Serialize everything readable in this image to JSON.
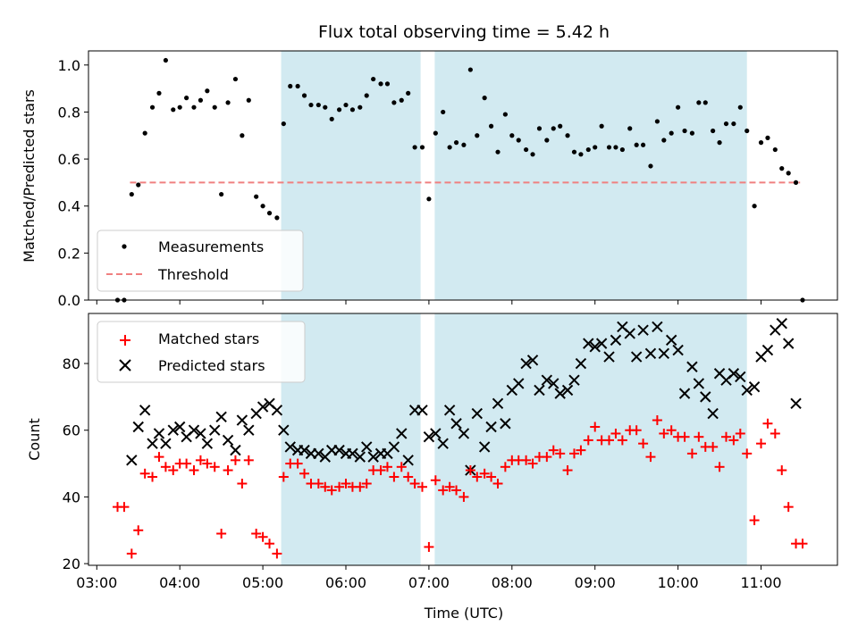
{
  "chart_data": [
    {
      "type": "scatter",
      "title": "Flux total observing time = 5.42 h",
      "ylabel": "Matched/Predicted stars",
      "ylim": [
        0,
        1.06
      ],
      "yticks": [
        "0.0",
        "0.2",
        "0.4",
        "0.6",
        "0.8",
        "1.0"
      ],
      "yticks_values": [
        0,
        0.2,
        0.4,
        0.6,
        0.8,
        1.0
      ],
      "legend": {
        "placement": "lower-left",
        "entries": [
          "Measurements",
          "Threshold"
        ]
      },
      "colors": {
        "points": "#000000",
        "threshold": "#f08080",
        "span": "#add8e6"
      },
      "threshold": {
        "name": "Threshold",
        "value": 0.5,
        "x_start": 3.4,
        "x_end": 11.47
      },
      "series": [
        {
          "name": "Measurements",
          "x": [
            3.25,
            3.33,
            3.42,
            3.5,
            3.58,
            3.67,
            3.75,
            3.83,
            3.92,
            4.0,
            4.08,
            4.17,
            4.25,
            4.33,
            4.42,
            4.5,
            4.58,
            4.67,
            4.75,
            4.83,
            4.92,
            5.0,
            5.08,
            5.17,
            5.25,
            5.33,
            5.42,
            5.5,
            5.58,
            5.67,
            5.75,
            5.83,
            5.92,
            6.0,
            6.08,
            6.17,
            6.25,
            6.33,
            6.42,
            6.5,
            6.58,
            6.67,
            6.75,
            6.83,
            6.92,
            7.0,
            7.08,
            7.17,
            7.25,
            7.33,
            7.42,
            7.5,
            7.58,
            7.67,
            7.75,
            7.83,
            7.92,
            8.0,
            8.08,
            8.17,
            8.25,
            8.33,
            8.42,
            8.5,
            8.58,
            8.67,
            8.75,
            8.83,
            8.92,
            9.0,
            9.08,
            9.17,
            9.25,
            9.33,
            9.42,
            9.5,
            9.58,
            9.67,
            9.75,
            9.83,
            9.92,
            10.0,
            10.08,
            10.17,
            10.25,
            10.33,
            10.42,
            10.5,
            10.58,
            10.67,
            10.75,
            10.83,
            10.92,
            11.0,
            11.08,
            11.17,
            11.25,
            11.33,
            11.42,
            11.5
          ],
          "y": [
            0.0,
            0.0,
            0.45,
            0.49,
            0.71,
            0.82,
            0.88,
            1.02,
            0.81,
            0.82,
            0.86,
            0.82,
            0.85,
            0.89,
            0.82,
            0.45,
            0.84,
            0.94,
            0.7,
            0.85,
            0.44,
            0.4,
            0.37,
            0.35,
            0.75,
            0.91,
            0.91,
            0.87,
            0.83,
            0.83,
            0.82,
            0.77,
            0.81,
            0.83,
            0.81,
            0.82,
            0.87,
            0.94,
            0.92,
            0.92,
            0.84,
            0.85,
            0.88,
            0.65,
            0.65,
            0.43,
            0.71,
            0.8,
            0.65,
            0.67,
            0.66,
            0.98,
            0.7,
            0.86,
            0.74,
            0.63,
            0.79,
            0.7,
            0.68,
            0.64,
            0.62,
            0.73,
            0.68,
            0.73,
            0.74,
            0.7,
            0.63,
            0.62,
            0.64,
            0.65,
            0.74,
            0.65,
            0.65,
            0.64,
            0.73,
            0.66,
            0.66,
            0.57,
            0.76,
            0.68,
            0.71,
            0.82,
            0.72,
            0.71,
            0.84,
            0.84,
            0.72,
            0.67,
            0.75,
            0.75,
            0.82,
            0.72,
            0.4,
            0.67,
            0.69,
            0.64,
            0.56,
            0.54,
            0.5,
            0.0
          ]
        }
      ]
    },
    {
      "type": "scatter",
      "xlabel": "Time (UTC)",
      "ylabel": "Count",
      "ylim": [
        19.5,
        95
      ],
      "xlim": [
        2.9,
        11.92
      ],
      "xticks": [
        "03:00",
        "04:00",
        "05:00",
        "06:00",
        "07:00",
        "08:00",
        "09:00",
        "10:00",
        "11:00"
      ],
      "xticks_values": [
        3,
        4,
        5,
        6,
        7,
        8,
        9,
        10,
        11
      ],
      "yticks": [
        "20",
        "40",
        "60",
        "80"
      ],
      "yticks_values": [
        20,
        40,
        60,
        80
      ],
      "legend": {
        "placement": "upper-left",
        "entries": [
          "Matched stars",
          "Predicted stars"
        ]
      },
      "colors": {
        "matched": "#ff0000",
        "predicted": "#000000",
        "span": "#add8e6"
      },
      "shaded_spans": [
        [
          5.22,
          6.9
        ],
        [
          7.07,
          10.83
        ]
      ],
      "series": [
        {
          "name": "Matched stars",
          "x": [
            3.25,
            3.33,
            3.42,
            3.5,
            3.58,
            3.67,
            3.75,
            3.83,
            3.92,
            4.0,
            4.08,
            4.17,
            4.25,
            4.33,
            4.42,
            4.5,
            4.58,
            4.67,
            4.75,
            4.83,
            4.92,
            5.0,
            5.08,
            5.17,
            5.25,
            5.33,
            5.42,
            5.5,
            5.58,
            5.67,
            5.75,
            5.83,
            5.92,
            6.0,
            6.08,
            6.17,
            6.25,
            6.33,
            6.42,
            6.5,
            6.58,
            6.67,
            6.75,
            6.83,
            6.92,
            7.0,
            7.08,
            7.17,
            7.25,
            7.33,
            7.42,
            7.5,
            7.58,
            7.67,
            7.75,
            7.83,
            7.92,
            8.0,
            8.08,
            8.17,
            8.25,
            8.33,
            8.42,
            8.5,
            8.58,
            8.67,
            8.75,
            8.83,
            8.92,
            9.0,
            9.08,
            9.17,
            9.25,
            9.33,
            9.42,
            9.5,
            9.58,
            9.67,
            9.75,
            9.83,
            9.92,
            10.0,
            10.08,
            10.17,
            10.25,
            10.33,
            10.42,
            10.5,
            10.58,
            10.67,
            10.75,
            10.83,
            10.92,
            11.0,
            11.08,
            11.17,
            11.25,
            11.33,
            11.42,
            11.5
          ],
          "y": [
            37,
            37,
            23,
            30,
            47,
            46,
            52,
            49,
            48,
            50,
            50,
            48,
            51,
            50,
            49,
            29,
            48,
            51,
            44,
            51,
            29,
            28,
            26,
            23,
            46,
            50,
            50,
            47,
            44,
            44,
            43,
            42,
            43,
            44,
            43,
            43,
            44,
            48,
            48,
            49,
            46,
            49,
            46,
            44,
            43,
            25,
            45,
            42,
            43,
            42,
            40,
            48,
            46,
            47,
            46,
            44,
            49,
            51,
            51,
            51,
            50,
            52,
            52,
            54,
            53,
            48,
            53,
            54,
            57,
            61,
            57,
            57,
            59,
            57,
            60,
            60,
            56,
            52,
            63,
            59,
            60,
            58,
            58,
            53,
            58,
            55,
            55,
            49,
            58,
            57,
            59,
            53,
            33,
            56,
            62,
            59,
            48,
            37,
            26,
            26
          ]
        },
        {
          "name": "Predicted stars",
          "x": [
            3.42,
            3.5,
            3.58,
            3.67,
            3.75,
            3.83,
            3.92,
            4.0,
            4.08,
            4.17,
            4.25,
            4.33,
            4.42,
            4.5,
            4.58,
            4.67,
            4.75,
            4.83,
            4.92,
            5.0,
            5.08,
            5.17,
            5.25,
            5.33,
            5.42,
            5.5,
            5.58,
            5.67,
            5.75,
            5.83,
            5.92,
            6.0,
            6.08,
            6.17,
            6.25,
            6.33,
            6.42,
            6.5,
            6.58,
            6.67,
            6.75,
            6.83,
            6.92,
            7.0,
            7.08,
            7.17,
            7.25,
            7.33,
            7.42,
            7.5,
            7.58,
            7.67,
            7.75,
            7.83,
            7.92,
            8.0,
            8.08,
            8.17,
            8.25,
            8.33,
            8.42,
            8.5,
            8.58,
            8.67,
            8.75,
            8.83,
            8.92,
            9.0,
            9.08,
            9.17,
            9.25,
            9.33,
            9.42,
            9.5,
            9.58,
            9.67,
            9.75,
            9.83,
            9.92,
            10.0,
            10.08,
            10.17,
            10.25,
            10.33,
            10.42,
            10.5,
            10.58,
            10.67,
            10.75,
            10.83,
            10.92,
            11.0,
            11.08,
            11.17,
            11.25,
            11.33,
            11.42
          ],
          "y": [
            51,
            61,
            66,
            56,
            59,
            56,
            60,
            61,
            58,
            60,
            59,
            56,
            60,
            64,
            57,
            54,
            63,
            60,
            65,
            67,
            68,
            66,
            60,
            55,
            54,
            54,
            53,
            53,
            52,
            54,
            54,
            53,
            53,
            52,
            55,
            52,
            53,
            53,
            55,
            59,
            51,
            66,
            66,
            58,
            59,
            56,
            66,
            62,
            59,
            48,
            65,
            55,
            61,
            68,
            62,
            72,
            74,
            80,
            81,
            72,
            75,
            74,
            71,
            72,
            75,
            80,
            86,
            85,
            86,
            82,
            87,
            91,
            89,
            82,
            90,
            83,
            91,
            83,
            87,
            84,
            71,
            79,
            74,
            70,
            65,
            77,
            75,
            77,
            76,
            72,
            73,
            82,
            84,
            90,
            92,
            86,
            68
          ]
        }
      ]
    }
  ]
}
